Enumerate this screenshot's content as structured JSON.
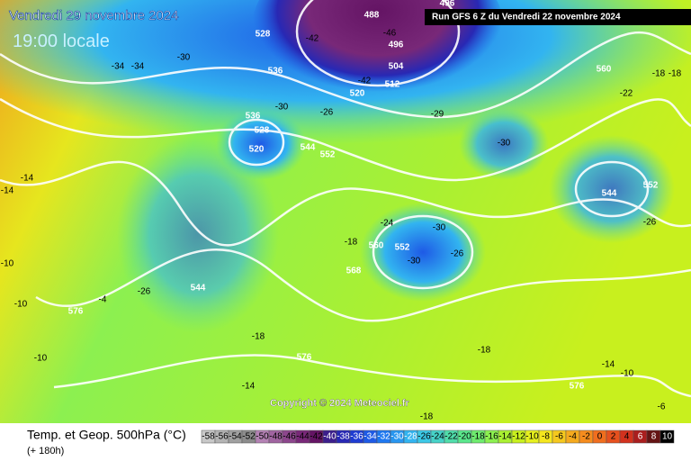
{
  "header": {
    "date": "Vendredi 29 novembre 2024",
    "time": "19:00 locale",
    "run": "Run GFS 6 Z du Vendredi 22 novembre 2024"
  },
  "copyright": "Copyright © 2024 Meteociel.fr",
  "footer": {
    "title": "Temp. et Geop. 500hPa (°C)",
    "lead": "(+ 180h)"
  },
  "geopotential_labels": [
    488,
    496,
    528,
    536,
    496,
    504,
    512,
    520,
    536,
    528,
    520,
    544,
    552,
    544,
    576,
    576,
    568,
    560,
    552,
    544,
    552,
    560,
    576
  ],
  "temperature_labels": [
    -34,
    -34,
    -30,
    -42,
    -46,
    -42,
    -30,
    -26,
    -29,
    -30,
    -18,
    -18,
    -22,
    -26,
    -18,
    -24,
    -30,
    -30,
    -26,
    -26,
    -18,
    -14,
    -18,
    -14,
    -10,
    -18,
    -6,
    -10,
    -10,
    -4,
    -14,
    -14,
    -10
  ],
  "legend": {
    "values": [
      -58,
      -56,
      -54,
      -52,
      -50,
      -48,
      -46,
      -44,
      -42,
      -40,
      -38,
      -36,
      -34,
      -32,
      -30,
      -28,
      -26,
      -24,
      -22,
      -20,
      -18,
      -16,
      -14,
      -12,
      -10,
      -8,
      -6,
      -4,
      -2,
      0,
      2,
      4,
      6,
      8,
      10
    ],
    "colors": [
      "#c8c8c8",
      "#b4b4b4",
      "#a0a0a0",
      "#8c8c8c",
      "#b482b4",
      "#a064a0",
      "#8c468c",
      "#782878",
      "#641464",
      "#3c1e8c",
      "#2828b4",
      "#1e3cd2",
      "#1e5ae6",
      "#1e78f0",
      "#2896f0",
      "#32b4f0",
      "#3cc8e6",
      "#46d2c8",
      "#50dcaa",
      "#5ae68c",
      "#6eeb6e",
      "#8cf050",
      "#aaf032",
      "#c8f01e",
      "#e6f01e",
      "#f5e61e",
      "#f5c81e",
      "#f5aa1e",
      "#f58c1e",
      "#f06e1e",
      "#e6501e",
      "#d2321e",
      "#aa1e1e",
      "#641414",
      "#000000"
    ]
  }
}
